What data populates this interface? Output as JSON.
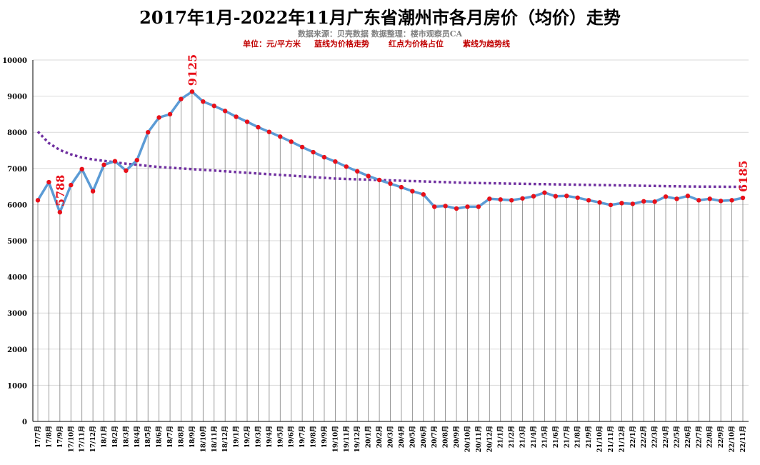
{
  "chart_data": {
    "type": "line",
    "title": "2017年1月-2022年11月广东省潮州市各月房价（均价）走势",
    "subtitle": "数据来源：贝壳数据  数据整理：楼市观察员CA",
    "legend_note": {
      "unit": "单位：元/平方米",
      "blue": "蓝线为价格走势",
      "red": "红点为价格占位",
      "purple": "紫线为趋势线"
    },
    "colors": {
      "line": "#5b9bd5",
      "points": "#e8101a",
      "trend": "#7030a0",
      "label": "#e8101a",
      "grid": "#d9d9d9"
    },
    "ylim": [
      0,
      10000
    ],
    "yticks": [
      "0",
      "1000",
      "2000",
      "3000",
      "4000",
      "5000",
      "6000",
      "7000",
      "8000",
      "9000",
      "10000"
    ],
    "categories": [
      "17/7月",
      "17/8月",
      "17/9月",
      "17/10月",
      "17/11月",
      "17/12月",
      "18/1月",
      "18/2月",
      "18/3月",
      "18/4月",
      "18/5月",
      "18/6月",
      "18/7月",
      "18/8月",
      "18/9月",
      "18/10月",
      "18/11月",
      "18/12月",
      "19/1月",
      "19/2月",
      "19/3月",
      "19/4月",
      "19/5月",
      "19/6月",
      "19/7月",
      "19/8月",
      "19/9月",
      "19/10月",
      "19/11月",
      "19/12月",
      "20/1月",
      "20/2月",
      "20/3月",
      "20/4月",
      "20/5月",
      "20/6月",
      "20/7月",
      "20/8月",
      "20/9月",
      "20/10月",
      "20/11月",
      "20/12月",
      "21/1月",
      "21/2月",
      "21/3月",
      "21/4月",
      "21/5月",
      "21/6月",
      "21/7月",
      "21/8月",
      "21/9月",
      "21/10月",
      "21/11月",
      "21/12月",
      "22/1月",
      "22/2月",
      "22/3月",
      "22/4月",
      "22/5月",
      "22/6月",
      "22/7月",
      "22/8月",
      "22/9月",
      "22/10月",
      "22/11月"
    ],
    "series": [
      {
        "name": "房价",
        "values": [
          6120,
          6620,
          5788,
          6540,
          6980,
          6370,
          7100,
          7200,
          6940,
          7230,
          8000,
          8410,
          8500,
          8920,
          9125,
          8850,
          8730,
          8590,
          8430,
          8290,
          8140,
          8010,
          7880,
          7740,
          7590,
          7450,
          7310,
          7190,
          7050,
          6920,
          6790,
          6680,
          6580,
          6480,
          6370,
          6280,
          5940,
          5960,
          5890,
          5940,
          5940,
          6160,
          6140,
          6120,
          6170,
          6230,
          6330,
          6230,
          6240,
          6190,
          6120,
          6060,
          5990,
          6040,
          6020,
          6090,
          6080,
          6220,
          6160,
          6240,
          6120,
          6160,
          6100,
          6120,
          6185
        ]
      },
      {
        "name": "趋势线",
        "values": [
          8020,
          7700,
          7510,
          7390,
          7300,
          7250,
          7210,
          7170,
          7130,
          7100,
          7070,
          7040,
          7020,
          7000,
          6980,
          6960,
          6940,
          6920,
          6900,
          6880,
          6860,
          6840,
          6820,
          6800,
          6780,
          6760,
          6740,
          6720,
          6710,
          6700,
          6690,
          6680,
          6670,
          6660,
          6650,
          6640,
          6630,
          6620,
          6610,
          6600,
          6595,
          6590,
          6585,
          6580,
          6575,
          6570,
          6565,
          6560,
          6555,
          6550,
          6545,
          6540,
          6535,
          6530,
          6525,
          6520,
          6515,
          6510,
          6505,
          6500,
          6498,
          6496,
          6494,
          6492,
          6490
        ]
      }
    ],
    "annotations": [
      {
        "index": 2,
        "text": "5788"
      },
      {
        "index": 14,
        "text": "9125"
      },
      {
        "index": 64,
        "text": "6185"
      }
    ]
  }
}
